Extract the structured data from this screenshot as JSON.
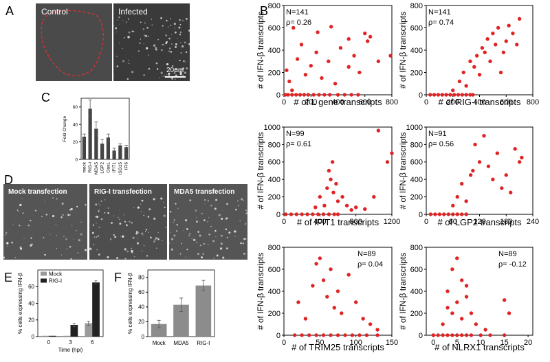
{
  "figure": {
    "letters": [
      "A",
      "B",
      "C",
      "D",
      "E",
      "F"
    ],
    "image_labels": {
      "control": "Control",
      "infected": "Infected",
      "scale": "20μm",
      "mock": "Mock transfection",
      "rigi": "RIG-I transfection",
      "mda5": "MDA5 transfection"
    }
  },
  "chart_data": [
    {
      "type": "scatter",
      "xlabel": "# of L gene transcripts",
      "ylabel": "# of IFN-β transcripts",
      "annotations": [
        "N=141",
        "ρ= 0.26"
      ],
      "color": "#e02424",
      "x": [
        10,
        30,
        60,
        90,
        120,
        150,
        180,
        220,
        260,
        300,
        340,
        400,
        450,
        500,
        550,
        20,
        40,
        70,
        100,
        130,
        160,
        200,
        240,
        280,
        330,
        380,
        420,
        480,
        520,
        560,
        600,
        620,
        640,
        700,
        790,
        60,
        250,
        350,
        480
      ],
      "values": [
        0,
        0,
        0,
        0,
        0,
        0,
        0,
        0,
        0,
        0,
        0,
        0,
        0,
        0,
        0,
        220,
        120,
        600,
        320,
        450,
        180,
        260,
        380,
        150,
        300,
        100,
        420,
        250,
        350,
        200,
        550,
        480,
        520,
        300,
        350,
        40,
        560,
        610,
        500
      ],
      "xlim": [
        0,
        800
      ],
      "xticks": [
        0,
        200,
        400,
        600,
        800
      ],
      "ylim": [
        0,
        800
      ],
      "yticks": [
        0,
        200,
        400,
        600,
        800
      ]
    },
    {
      "type": "scatter",
      "xlabel": "# of RIG-I transcripts",
      "ylabel": "# of IFN-β transcripts",
      "annotations": [
        "N=141",
        "ρ= 0.74"
      ],
      "color": "#e02424",
      "x": [
        30,
        60,
        90,
        120,
        150,
        180,
        210,
        240,
        270,
        300,
        330,
        350,
        200,
        250,
        280,
        300,
        330,
        360,
        380,
        400,
        420,
        440,
        460,
        480,
        500,
        520,
        540,
        560,
        580,
        600,
        620,
        650,
        680,
        700
      ],
      "values": [
        0,
        0,
        0,
        0,
        0,
        0,
        0,
        0,
        0,
        0,
        0,
        0,
        40,
        120,
        200,
        80,
        300,
        250,
        350,
        180,
        420,
        380,
        500,
        300,
        550,
        450,
        600,
        200,
        380,
        480,
        620,
        550,
        450,
        680
      ],
      "xlim": [
        0,
        800
      ],
      "xticks": [
        0,
        200,
        400,
        600,
        800
      ],
      "ylim": [
        0,
        800
      ],
      "yticks": [
        0,
        200,
        400,
        600,
        800
      ]
    },
    {
      "type": "scatter",
      "xlabel": "# of IFIT1 transcripts",
      "ylabel": "# of IFN-β transcripts",
      "annotations": [
        "N=99",
        "ρ= 0.61"
      ],
      "color": "#e02424",
      "x": [
        20,
        80,
        140,
        200,
        260,
        320,
        380,
        440,
        500,
        560,
        600,
        350,
        400,
        450,
        480,
        500,
        520,
        540,
        550,
        580,
        600,
        650,
        700,
        750,
        800,
        900,
        1000,
        1050,
        1150,
        1200
      ],
      "values": [
        0,
        0,
        0,
        0,
        0,
        0,
        0,
        0,
        0,
        0,
        0,
        80,
        200,
        100,
        300,
        500,
        400,
        600,
        250,
        350,
        150,
        200,
        100,
        50,
        80,
        60,
        200,
        960,
        600,
        700
      ],
      "xlim": [
        0,
        1200
      ],
      "xticks": [
        0,
        400,
        800,
        1200
      ],
      "ylim": [
        0,
        1000
      ],
      "yticks": [
        0,
        200,
        400,
        600,
        800,
        1000
      ]
    },
    {
      "type": "scatter",
      "xlabel": "# of LGP2 transcripts",
      "ylabel": "# of IFN-β transcripts",
      "annotations": [
        "N=91",
        "ρ= 0.56"
      ],
      "color": "#e02424",
      "x": [
        10,
        20,
        30,
        40,
        50,
        60,
        70,
        80,
        90,
        60,
        70,
        80,
        90,
        100,
        105,
        110,
        120,
        130,
        140,
        150,
        160,
        170,
        180,
        190,
        200,
        210,
        215
      ],
      "values": [
        0,
        0,
        0,
        0,
        0,
        0,
        0,
        0,
        0,
        100,
        200,
        350,
        150,
        450,
        500,
        800,
        600,
        900,
        550,
        400,
        700,
        300,
        450,
        250,
        750,
        600,
        650
      ],
      "xlim": [
        0,
        240
      ],
      "xticks": [
        0,
        60,
        120,
        180,
        240
      ],
      "ylim": [
        0,
        1000
      ],
      "yticks": [
        0,
        200,
        400,
        600,
        800,
        1000
      ]
    },
    {
      "type": "scatter",
      "xlabel": "# of TRIM25 transcripts",
      "ylabel": "# of IFN-β transcripts",
      "annotations": [
        "N=89",
        "ρ= 0.04"
      ],
      "color": "#e02424",
      "x": [
        15,
        25,
        35,
        45,
        55,
        65,
        75,
        85,
        95,
        105,
        115,
        130,
        20,
        30,
        40,
        45,
        50,
        55,
        60,
        65,
        70,
        75,
        80,
        90,
        100,
        110,
        120,
        130
      ],
      "values": [
        0,
        0,
        0,
        0,
        0,
        0,
        0,
        0,
        0,
        0,
        0,
        0,
        300,
        150,
        450,
        650,
        700,
        500,
        350,
        600,
        250,
        400,
        200,
        550,
        300,
        150,
        100,
        50
      ],
      "xlim": [
        0,
        150
      ],
      "xticks": [
        0,
        50,
        100,
        150
      ],
      "ylim": [
        0,
        800
      ],
      "yticks": [
        0,
        200,
        400,
        600,
        800
      ]
    },
    {
      "type": "scatter",
      "xlabel": "# of NLRX1 transcripts",
      "ylabel": "# of IFN-β transcripts",
      "annotations": [
        "N=89",
        "ρ= -0.12"
      ],
      "color": "#e02424",
      "x": [
        0,
        1,
        2,
        3,
        4,
        5,
        6,
        7,
        8,
        10,
        12,
        15,
        2,
        3,
        3,
        4,
        4,
        5,
        5,
        6,
        6,
        7,
        7,
        8,
        9,
        11,
        15,
        16
      ],
      "values": [
        0,
        0,
        0,
        0,
        0,
        0,
        0,
        0,
        0,
        0,
        0,
        0,
        100,
        400,
        250,
        600,
        200,
        700,
        300,
        500,
        150,
        450,
        350,
        200,
        100,
        50,
        320,
        200
      ],
      "xlim": [
        -1.5,
        21
      ],
      "xticks": [
        0,
        5,
        10,
        15,
        20
      ],
      "ylim": [
        0,
        800
      ],
      "yticks": [
        0,
        200,
        400,
        600,
        800
      ]
    },
    {
      "type": "bar",
      "ylabel": "Fold Change",
      "categories": [
        "mock",
        "RIG-I",
        "MDA5",
        "LGP2",
        "OasL",
        "IFIT1",
        "ISG15",
        "IFI6"
      ],
      "values": [
        26,
        58,
        35,
        18,
        25,
        10,
        16,
        14
      ],
      "errors": [
        3,
        10,
        8,
        5,
        4,
        3,
        2,
        2
      ],
      "color": "#444444",
      "ylim": [
        0,
        70
      ],
      "yticks": [
        0,
        20,
        40,
        60
      ]
    },
    {
      "type": "grouped_bar",
      "ylabel": "% cells expressing IFN-β",
      "xlabel": "Time (hpi)",
      "categories": [
        "0",
        "3",
        "6"
      ],
      "series": [
        {
          "name": "Mock",
          "color": "#9a9a9a",
          "values": [
            1,
            1,
            16
          ],
          "errors": [
            0,
            0,
            2.5
          ]
        },
        {
          "name": "RIG-I",
          "color": "#222222",
          "values": [
            1,
            14,
            65
          ],
          "errors": [
            0,
            2,
            2
          ]
        }
      ],
      "ylim": [
        0,
        80
      ],
      "yticks": [
        0,
        20,
        40,
        60
      ],
      "legend": "upper left"
    },
    {
      "type": "bar",
      "ylabel": "% cells expressing IFN-β",
      "categories": [
        "Mock",
        "MDA5",
        "RIG-I"
      ],
      "values": [
        17,
        43,
        69
      ],
      "errors": [
        5,
        9,
        7
      ],
      "color": "#8c8c8c",
      "ylim": [
        0,
        90
      ],
      "yticks": [
        0,
        20,
        40,
        60,
        80
      ]
    }
  ]
}
